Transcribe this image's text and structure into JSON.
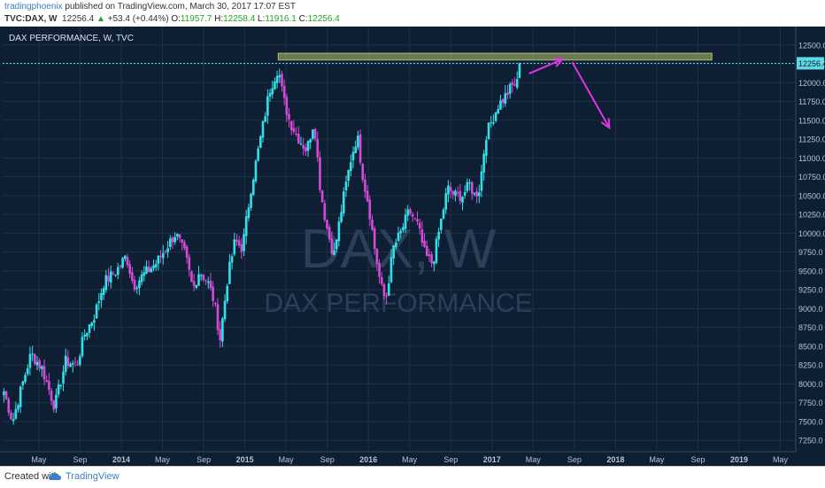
{
  "header": {
    "author": "tradingphoenix",
    "published_text": "published on TradingView.com, March 30, 2017 17:07 EST",
    "symbol": "TVC:DAX, W",
    "last": "12256.4",
    "change_arrow": "▲",
    "change": "+53.4 (+0.44%)",
    "open_label": "O:",
    "open": "11957.7",
    "high_label": "H:",
    "high": "12258.4",
    "low_label": "L:",
    "low": "11916.1",
    "close_label": "C:",
    "close": "12256.4"
  },
  "footer": {
    "created_with": "Created with",
    "brand": "TradingView"
  },
  "colors": {
    "background": "#0f1f33",
    "grid": "#1d3148",
    "up_candle": "#33e0e8",
    "down_candle": "#d64ad8",
    "arrow": "#e233e6",
    "resistance_zone": "#8a9a5e",
    "price_line": "#5fd9e6",
    "axis_text": "#b6c3d1"
  },
  "chart_data": {
    "type": "candlestick",
    "title": "DAX PERFORMANCE, W, TVC",
    "watermark_symbol": "DAX, W",
    "watermark_name": "DAX PERFORMANCE",
    "ylim": [
      7100,
      12650
    ],
    "y_ticks": [
      7250,
      7500,
      7750,
      8000,
      8250,
      8500,
      8750,
      9000,
      9250,
      9500,
      9750,
      10000,
      10250,
      10500,
      10750,
      11000,
      11250,
      11500,
      11750,
      12000,
      12250,
      12500
    ],
    "y_tick_labels": [
      "7250.0",
      "7500.0",
      "7750.0",
      "8000.0",
      "8250.0",
      "8500.0",
      "8750.0",
      "9000.0",
      "9250.0",
      "9500.0",
      "9750.0",
      "10000.0",
      "10250.0",
      "10500.0",
      "10750.0",
      "11000.0",
      "11250.0",
      "11500.0",
      "11750.0",
      "12000.0",
      "12250.0",
      "12500.0"
    ],
    "last_price": 12256.4,
    "last_price_label": "12256.4",
    "x_ticks": [
      {
        "t": 2013.333,
        "label": "May"
      },
      {
        "t": 2013.667,
        "label": "Sep"
      },
      {
        "t": 2014.0,
        "label": "2014"
      },
      {
        "t": 2014.333,
        "label": "May"
      },
      {
        "t": 2014.667,
        "label": "Sep"
      },
      {
        "t": 2015.0,
        "label": "2015"
      },
      {
        "t": 2015.333,
        "label": "May"
      },
      {
        "t": 2015.667,
        "label": "Sep"
      },
      {
        "t": 2016.0,
        "label": "2016"
      },
      {
        "t": 2016.333,
        "label": "May"
      },
      {
        "t": 2016.667,
        "label": "Sep"
      },
      {
        "t": 2017.0,
        "label": "2017"
      },
      {
        "t": 2017.333,
        "label": "May"
      },
      {
        "t": 2017.667,
        "label": "Sep"
      },
      {
        "t": 2018.0,
        "label": "2018"
      },
      {
        "t": 2018.333,
        "label": "May"
      },
      {
        "t": 2018.667,
        "label": "Sep"
      },
      {
        "t": 2019.0,
        "label": "2019"
      },
      {
        "t": 2019.333,
        "label": "May"
      }
    ],
    "xlim": [
      2013.04,
      2019.43
    ],
    "price_path": [
      [
        2013.05,
        7900
      ],
      [
        2013.12,
        7500
      ],
      [
        2013.2,
        8000
      ],
      [
        2013.27,
        8400
      ],
      [
        2013.36,
        8200
      ],
      [
        2013.46,
        7700
      ],
      [
        2013.55,
        8300
      ],
      [
        2013.64,
        8250
      ],
      [
        2013.7,
        8650
      ],
      [
        2013.78,
        8900
      ],
      [
        2013.86,
        9350
      ],
      [
        2013.96,
        9500
      ],
      [
        2014.04,
        9700
      ],
      [
        2014.1,
        9300
      ],
      [
        2014.18,
        9450
      ],
      [
        2014.28,
        9600
      ],
      [
        2014.36,
        9800
      ],
      [
        2014.44,
        10000
      ],
      [
        2014.52,
        9700
      ],
      [
        2014.58,
        9250
      ],
      [
        2014.63,
        9500
      ],
      [
        2014.7,
        9350
      ],
      [
        2014.75,
        9100
      ],
      [
        2014.8,
        8600
      ],
      [
        2014.86,
        9400
      ],
      [
        2014.92,
        9900
      ],
      [
        2014.98,
        9800
      ],
      [
        2015.05,
        10600
      ],
      [
        2015.12,
        11200
      ],
      [
        2015.2,
        11900
      ],
      [
        2015.27,
        12200
      ],
      [
        2015.31,
        11800
      ],
      [
        2015.36,
        11500
      ],
      [
        2015.42,
        11300
      ],
      [
        2015.5,
        11100
      ],
      [
        2015.56,
        11500
      ],
      [
        2015.61,
        10600
      ],
      [
        2015.66,
        10100
      ],
      [
        2015.72,
        9700
      ],
      [
        2015.79,
        10400
      ],
      [
        2015.86,
        11000
      ],
      [
        2015.91,
        11300
      ],
      [
        2015.96,
        10700
      ],
      [
        2016.0,
        10400
      ],
      [
        2016.05,
        9800
      ],
      [
        2016.1,
        9300
      ],
      [
        2016.14,
        9100
      ],
      [
        2016.2,
        9800
      ],
      [
        2016.26,
        10000
      ],
      [
        2016.33,
        10300
      ],
      [
        2016.4,
        10100
      ],
      [
        2016.46,
        9700
      ],
      [
        2016.52,
        9600
      ],
      [
        2016.58,
        10100
      ],
      [
        2016.64,
        10600
      ],
      [
        2016.7,
        10500
      ],
      [
        2016.76,
        10500
      ],
      [
        2016.82,
        10650
      ],
      [
        2016.86,
        10500
      ],
      [
        2016.9,
        10600
      ],
      [
        2016.95,
        11300
      ],
      [
        2017.0,
        11500
      ],
      [
        2017.05,
        11700
      ],
      [
        2017.1,
        11800
      ],
      [
        2017.16,
        11950
      ],
      [
        2017.21,
        12000
      ],
      [
        2017.24,
        12256
      ]
    ],
    "annotations": {
      "resistance_zone": {
        "t_start": 2015.27,
        "t_end": 2018.78,
        "y_low": 12300,
        "y_high": 12390
      },
      "arrow_up": {
        "from": [
          2017.3,
          12120
        ],
        "to": [
          2017.57,
          12310
        ]
      },
      "arrow_down": {
        "from": [
          2017.65,
          12270
        ],
        "to": [
          2017.95,
          11400
        ]
      }
    }
  }
}
